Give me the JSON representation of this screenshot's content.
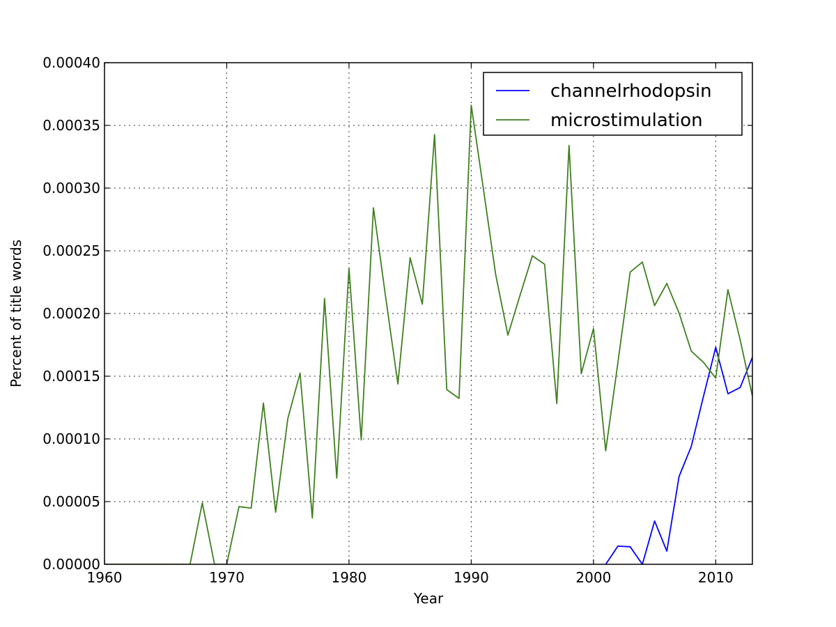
{
  "chart_data": {
    "type": "line",
    "xlabel": "Year",
    "ylabel": "Percent of title words",
    "xlim": [
      1960,
      2013
    ],
    "ylim": [
      0,
      0.0004
    ],
    "xticks": [
      {
        "value": 1960,
        "label": "1960"
      },
      {
        "value": 1970,
        "label": "1970"
      },
      {
        "value": 1980,
        "label": "1980"
      },
      {
        "value": 1990,
        "label": "1990"
      },
      {
        "value": 2000,
        "label": "2000"
      },
      {
        "value": 2010,
        "label": "2010"
      }
    ],
    "yticks": [
      {
        "value": 0,
        "label": "0.00000"
      },
      {
        "value": 5e-05,
        "label": "0.00005"
      },
      {
        "value": 0.0001,
        "label": "0.00010"
      },
      {
        "value": 0.00015,
        "label": "0.00015"
      },
      {
        "value": 0.0002,
        "label": "0.00020"
      },
      {
        "value": 0.00025,
        "label": "0.00025"
      },
      {
        "value": 0.0003,
        "label": "0.00030"
      },
      {
        "value": 0.00035,
        "label": "0.00035"
      },
      {
        "value": 0.0004,
        "label": "0.00040"
      }
    ],
    "grid": true,
    "legend_position": "top-right",
    "series": [
      {
        "name": "channelrhodopsin",
        "color": "#0000ff",
        "x": [
          2001,
          2002,
          2003,
          2004,
          2005,
          2006,
          2007,
          2008,
          2009,
          2010,
          2011,
          2012,
          2013
        ],
        "y": [
          0,
          1.45e-05,
          1.4e-05,
          0,
          3.45e-05,
          1.05e-05,
          7e-05,
          9.4e-05,
          0.000134,
          0.000173,
          0.000136,
          0.000141,
          0.000165
        ]
      },
      {
        "name": "microstimulation",
        "color": "#3f7f1f",
        "x": [
          1960,
          1961,
          1962,
          1963,
          1964,
          1965,
          1966,
          1967,
          1968,
          1969,
          1970,
          1971,
          1972,
          1973,
          1974,
          1975,
          1976,
          1977,
          1978,
          1979,
          1980,
          1981,
          1982,
          1983,
          1984,
          1985,
          1986,
          1987,
          1988,
          1989,
          1990,
          1991,
          1992,
          1993,
          1994,
          1995,
          1996,
          1997,
          1998,
          1999,
          2000,
          2001,
          2002,
          2003,
          2004,
          2005,
          2006,
          2007,
          2008,
          2009,
          2010,
          2011,
          2012,
          2013
        ],
        "y": [
          0,
          0,
          0,
          0,
          0,
          0,
          0,
          0,
          4.9e-05,
          0,
          0,
          4.6e-05,
          4.48e-05,
          0.0001286,
          4.15e-05,
          0.0001164,
          0.0001524,
          3.69e-05,
          0.000212,
          6.87e-05,
          0.0002363,
          9.91e-05,
          0.0002843,
          0.000213,
          0.0001438,
          0.0002444,
          0.0002074,
          0.0003427,
          0.0001393,
          0.0001323,
          0.0003661,
          0.000299,
          0.000231,
          0.0001827,
          0.0002147,
          0.000246,
          0.0002393,
          0.0001282,
          0.000334,
          0.000152,
          0.000188,
          9.05e-05,
          0.000161,
          0.000233,
          0.000241,
          0.0002063,
          0.000224,
          0.0002004,
          0.00017,
          0.000161,
          0.0001485,
          0.000219,
          0.000179,
          0.000134
        ]
      }
    ]
  }
}
